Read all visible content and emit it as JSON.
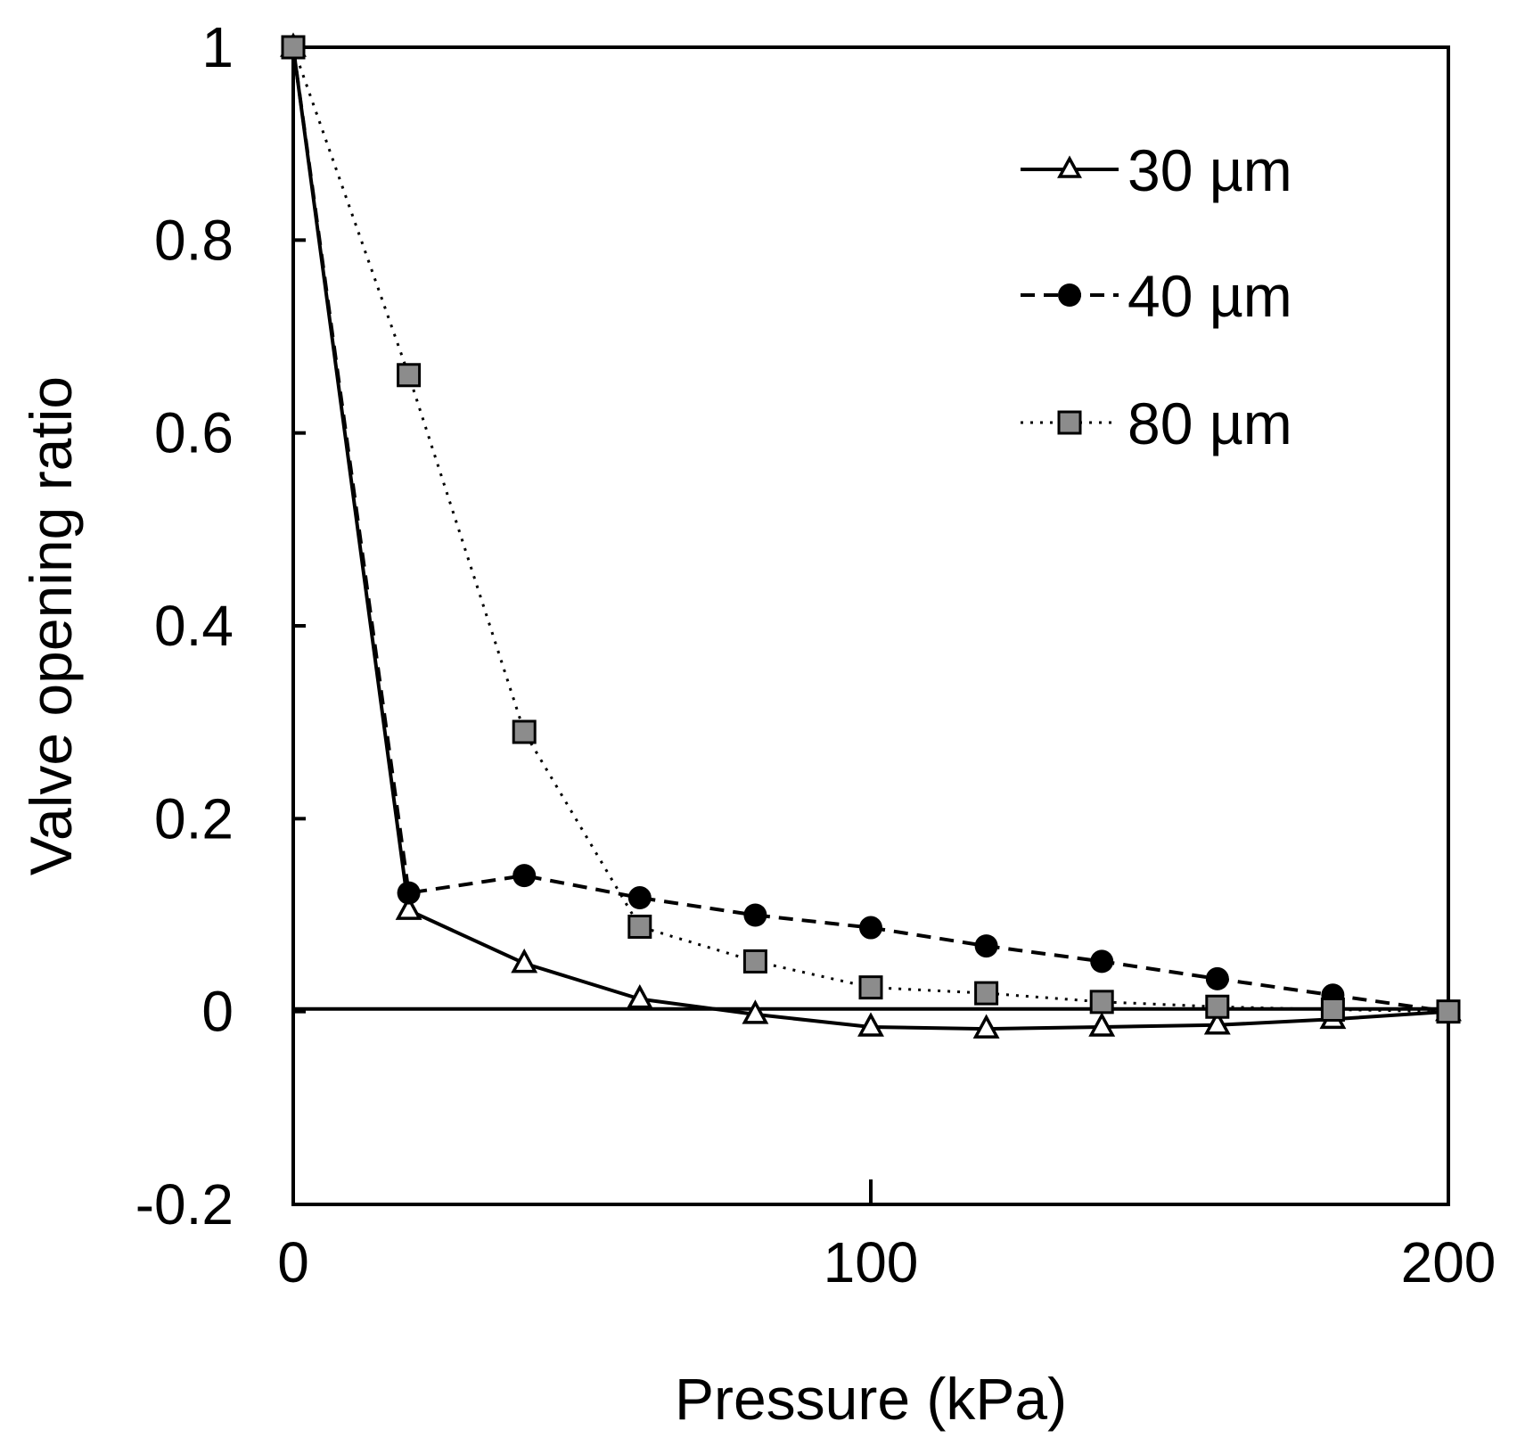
{
  "chart_data": {
    "type": "line",
    "title": "",
    "xlabel": "Pressure (kPa)",
    "ylabel": "Valve opening ratio",
    "xlim": [
      0,
      200
    ],
    "ylim": [
      -0.2,
      1
    ],
    "x_ticks": [
      0,
      100,
      200
    ],
    "x_tick_labels": [
      "0",
      "100",
      "200"
    ],
    "y_ticks": [
      -0.2,
      0,
      0.2,
      0.4,
      0.6,
      0.8,
      1
    ],
    "y_tick_labels": [
      "-0.2",
      "0",
      "0.2",
      "0.4",
      "0.6",
      "0.8",
      "1"
    ],
    "grid": false,
    "zero_line": true,
    "legend_position": "top-right",
    "x": [
      0,
      20,
      40,
      60,
      80,
      100,
      120,
      140,
      160,
      180,
      200
    ],
    "series": [
      {
        "name": "30 µm",
        "style": "solid",
        "marker": "triangle-open",
        "color": "#000000",
        "values": [
          1.0,
          0.105,
          0.05,
          0.013,
          -0.003,
          -0.016,
          -0.018,
          -0.016,
          -0.014,
          -0.008,
          0.0
        ]
      },
      {
        "name": "40 µm",
        "style": "dashed",
        "marker": "circle-filled",
        "color": "#000000",
        "values": [
          1.0,
          0.123,
          0.141,
          0.118,
          0.1,
          0.087,
          0.068,
          0.052,
          0.034,
          0.017,
          0.0
        ]
      },
      {
        "name": "80 µm",
        "style": "dotted",
        "marker": "square-gray",
        "color": "#8c8c8c",
        "values": [
          1.0,
          0.66,
          0.29,
          0.088,
          0.052,
          0.025,
          0.019,
          0.01,
          0.005,
          0.002,
          0.0
        ]
      }
    ]
  }
}
